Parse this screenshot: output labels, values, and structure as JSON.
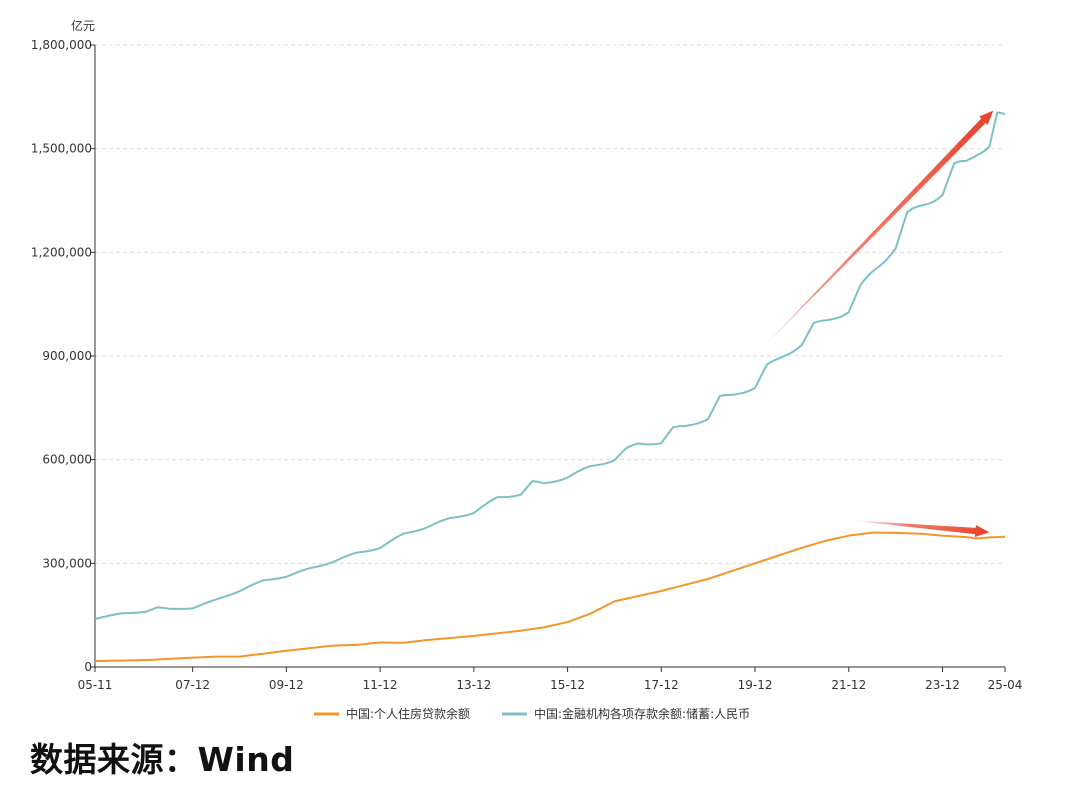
{
  "chart_data": {
    "type": "line",
    "y_unit": "亿元",
    "ylim": [
      0,
      1800000
    ],
    "y_ticks": [
      "0",
      "300,000",
      "600,000",
      "900,000",
      "1,200,000",
      "1,500,000",
      "1,800,000"
    ],
    "x_ticks": [
      "05-11",
      "07-12",
      "09-12",
      "11-12",
      "13-12",
      "15-12",
      "17-12",
      "19-12",
      "21-12",
      "23-12",
      "25-04"
    ],
    "x_range": [
      "2005-11",
      "2025-04"
    ],
    "grid": true,
    "legend_position": "bottom",
    "series": [
      {
        "name": "中国:个人住房贷款余额",
        "color": "#f0962a",
        "points": [
          [
            "2005-11",
            17000
          ],
          [
            "2006-12",
            20000
          ],
          [
            "2007-12",
            27000
          ],
          [
            "2008-06",
            30000
          ],
          [
            "2008-12",
            30000
          ],
          [
            "2009-12",
            47000
          ],
          [
            "2010-12",
            62000
          ],
          [
            "2011-06",
            64000
          ],
          [
            "2011-12",
            71000
          ],
          [
            "2012-06",
            70000
          ],
          [
            "2012-12",
            78000
          ],
          [
            "2013-12",
            90000
          ],
          [
            "2014-12",
            105000
          ],
          [
            "2015-06",
            115000
          ],
          [
            "2015-12",
            130000
          ],
          [
            "2016-06",
            155000
          ],
          [
            "2016-12",
            190000
          ],
          [
            "2017-12",
            220000
          ],
          [
            "2018-12",
            255000
          ],
          [
            "2019-12",
            300000
          ],
          [
            "2020-12",
            345000
          ],
          [
            "2021-06",
            365000
          ],
          [
            "2021-12",
            380000
          ],
          [
            "2022-06",
            389000
          ],
          [
            "2022-12",
            388000
          ],
          [
            "2023-06",
            386000
          ],
          [
            "2023-12",
            380000
          ],
          [
            "2024-06",
            376000
          ],
          [
            "2024-09",
            372000
          ],
          [
            "2024-12",
            375000
          ],
          [
            "2025-04",
            377000
          ]
        ]
      },
      {
        "name": "中国:金融机构各项存款余额:储蓄:人民币",
        "color": "#7cc0c6",
        "points": [
          [
            "2005-11",
            140000
          ],
          [
            "2006-06",
            155000
          ],
          [
            "2006-12",
            160000
          ],
          [
            "2007-03",
            172000
          ],
          [
            "2007-06",
            168000
          ],
          [
            "2007-12",
            170000
          ],
          [
            "2008-06",
            195000
          ],
          [
            "2008-12",
            220000
          ],
          [
            "2009-06",
            250000
          ],
          [
            "2009-12",
            262000
          ],
          [
            "2010-06",
            285000
          ],
          [
            "2010-12",
            305000
          ],
          [
            "2011-06",
            330000
          ],
          [
            "2011-12",
            345000
          ],
          [
            "2012-06",
            385000
          ],
          [
            "2012-12",
            405000
          ],
          [
            "2013-06",
            430000
          ],
          [
            "2013-12",
            447000
          ],
          [
            "2014-06",
            490000
          ],
          [
            "2014-12",
            500000
          ],
          [
            "2015-03",
            535000
          ],
          [
            "2015-06",
            530000
          ],
          [
            "2015-12",
            550000
          ],
          [
            "2016-06",
            580000
          ],
          [
            "2016-12",
            600000
          ],
          [
            "2017-03",
            630000
          ],
          [
            "2017-06",
            645000
          ],
          [
            "2017-12",
            650000
          ],
          [
            "2018-03",
            690000
          ],
          [
            "2018-06",
            695000
          ],
          [
            "2018-12",
            720000
          ],
          [
            "2019-03",
            780000
          ],
          [
            "2019-06",
            785000
          ],
          [
            "2019-12",
            810000
          ],
          [
            "2020-03",
            870000
          ],
          [
            "2020-06",
            890000
          ],
          [
            "2020-12",
            935000
          ],
          [
            "2021-03",
            990000
          ],
          [
            "2021-06",
            1000000
          ],
          [
            "2021-12",
            1030000
          ],
          [
            "2022-03",
            1100000
          ],
          [
            "2022-06",
            1140000
          ],
          [
            "2022-12",
            1215000
          ],
          [
            "2023-03",
            1310000
          ],
          [
            "2023-06",
            1330000
          ],
          [
            "2023-12",
            1370000
          ],
          [
            "2024-03",
            1450000
          ],
          [
            "2024-06",
            1460000
          ],
          [
            "2024-09",
            1490000
          ],
          [
            "2024-12",
            1510000
          ],
          [
            "2025-02",
            1600000
          ],
          [
            "2025-04",
            1590000
          ]
        ]
      }
    ],
    "annotations": [
      {
        "type": "arrow",
        "color": "#e8452c",
        "from": [
          "2019-11",
          890000
        ],
        "to": [
          "2025-01",
          1610000
        ]
      },
      {
        "type": "arrow",
        "color": "#e8452c",
        "from": [
          "2021-12",
          425000
        ],
        "to": [
          "2024-12",
          390000
        ]
      }
    ]
  },
  "source_note": "数据来源：Wind"
}
